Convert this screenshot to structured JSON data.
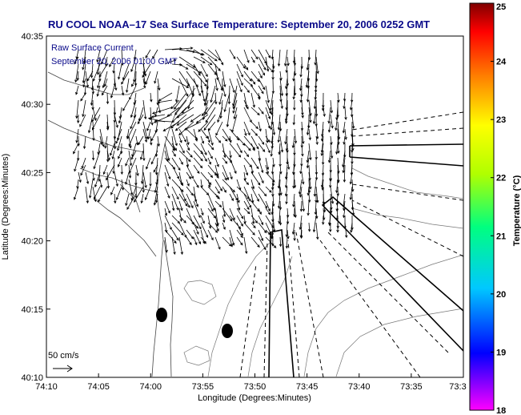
{
  "chart_data": {
    "type": "heatmap",
    "title": "RU COOL  NOAA–17  Sea Surface Temperature:  September 20, 2006 0252 GMT",
    "annotation_line1": "Raw Surface Current",
    "annotation_line2": "September 20, 2006 01:00 GMT",
    "xlabel": "Longitude (Degrees:Minutes)",
    "ylabel": "Latitude (Degrees:Minutes)",
    "colorbar_label": "Temperature (°C)",
    "x_ticks": [
      "74:10",
      "74:05",
      "74:00",
      "73:55",
      "73:50",
      "73:45",
      "73:40",
      "73:35",
      "73:3"
    ],
    "y_ticks": [
      "40:35",
      "40:30",
      "40:25",
      "40:20",
      "40:15",
      "40:10"
    ],
    "colorbar_ticks": [
      "25",
      "24",
      "23",
      "22",
      "21",
      "20",
      "19",
      "18"
    ],
    "colorbar_range": [
      18,
      25
    ],
    "scale_label": "50 cm/s",
    "colors": {
      "title": "#0b0b8a",
      "colorbar_stops": [
        "#ff00ff",
        "#0000ff",
        "#00c8ff",
        "#00ff00",
        "#ffff00",
        "#ff8000",
        "#ff0000",
        "#800000"
      ]
    }
  }
}
